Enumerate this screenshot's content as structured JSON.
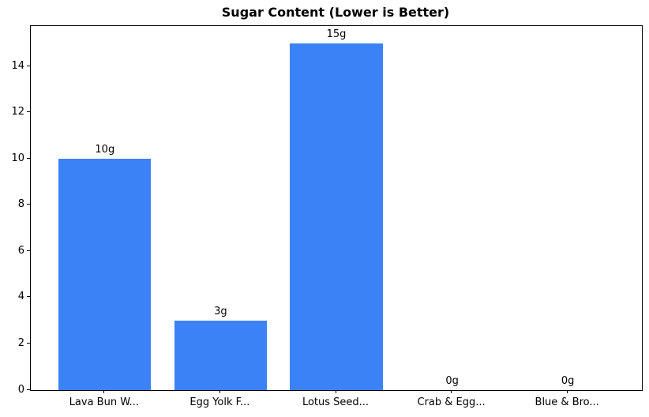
{
  "colors": {
    "bar": "#3b82f6",
    "axis": "#000000",
    "background": "#ffffff",
    "text": "#000000"
  },
  "chart_data": {
    "type": "bar",
    "title": "Sugar Content (Lower is Better)",
    "categories": [
      "Lava Bun W...",
      "Egg Yolk F...",
      "Lotus Seed...",
      "Crab & Egg...",
      "Blue & Bro..."
    ],
    "values": [
      10,
      3,
      15,
      0,
      0
    ],
    "value_labels": [
      "10g",
      "3g",
      "15g",
      "0g",
      "0g"
    ],
    "xlabel": "",
    "ylabel": "",
    "ylim": [
      0,
      15.75
    ],
    "yticks": [
      0,
      2,
      4,
      6,
      8,
      10,
      12,
      14
    ],
    "bar_width_ratio": 0.8,
    "grid": false,
    "legend": null
  }
}
